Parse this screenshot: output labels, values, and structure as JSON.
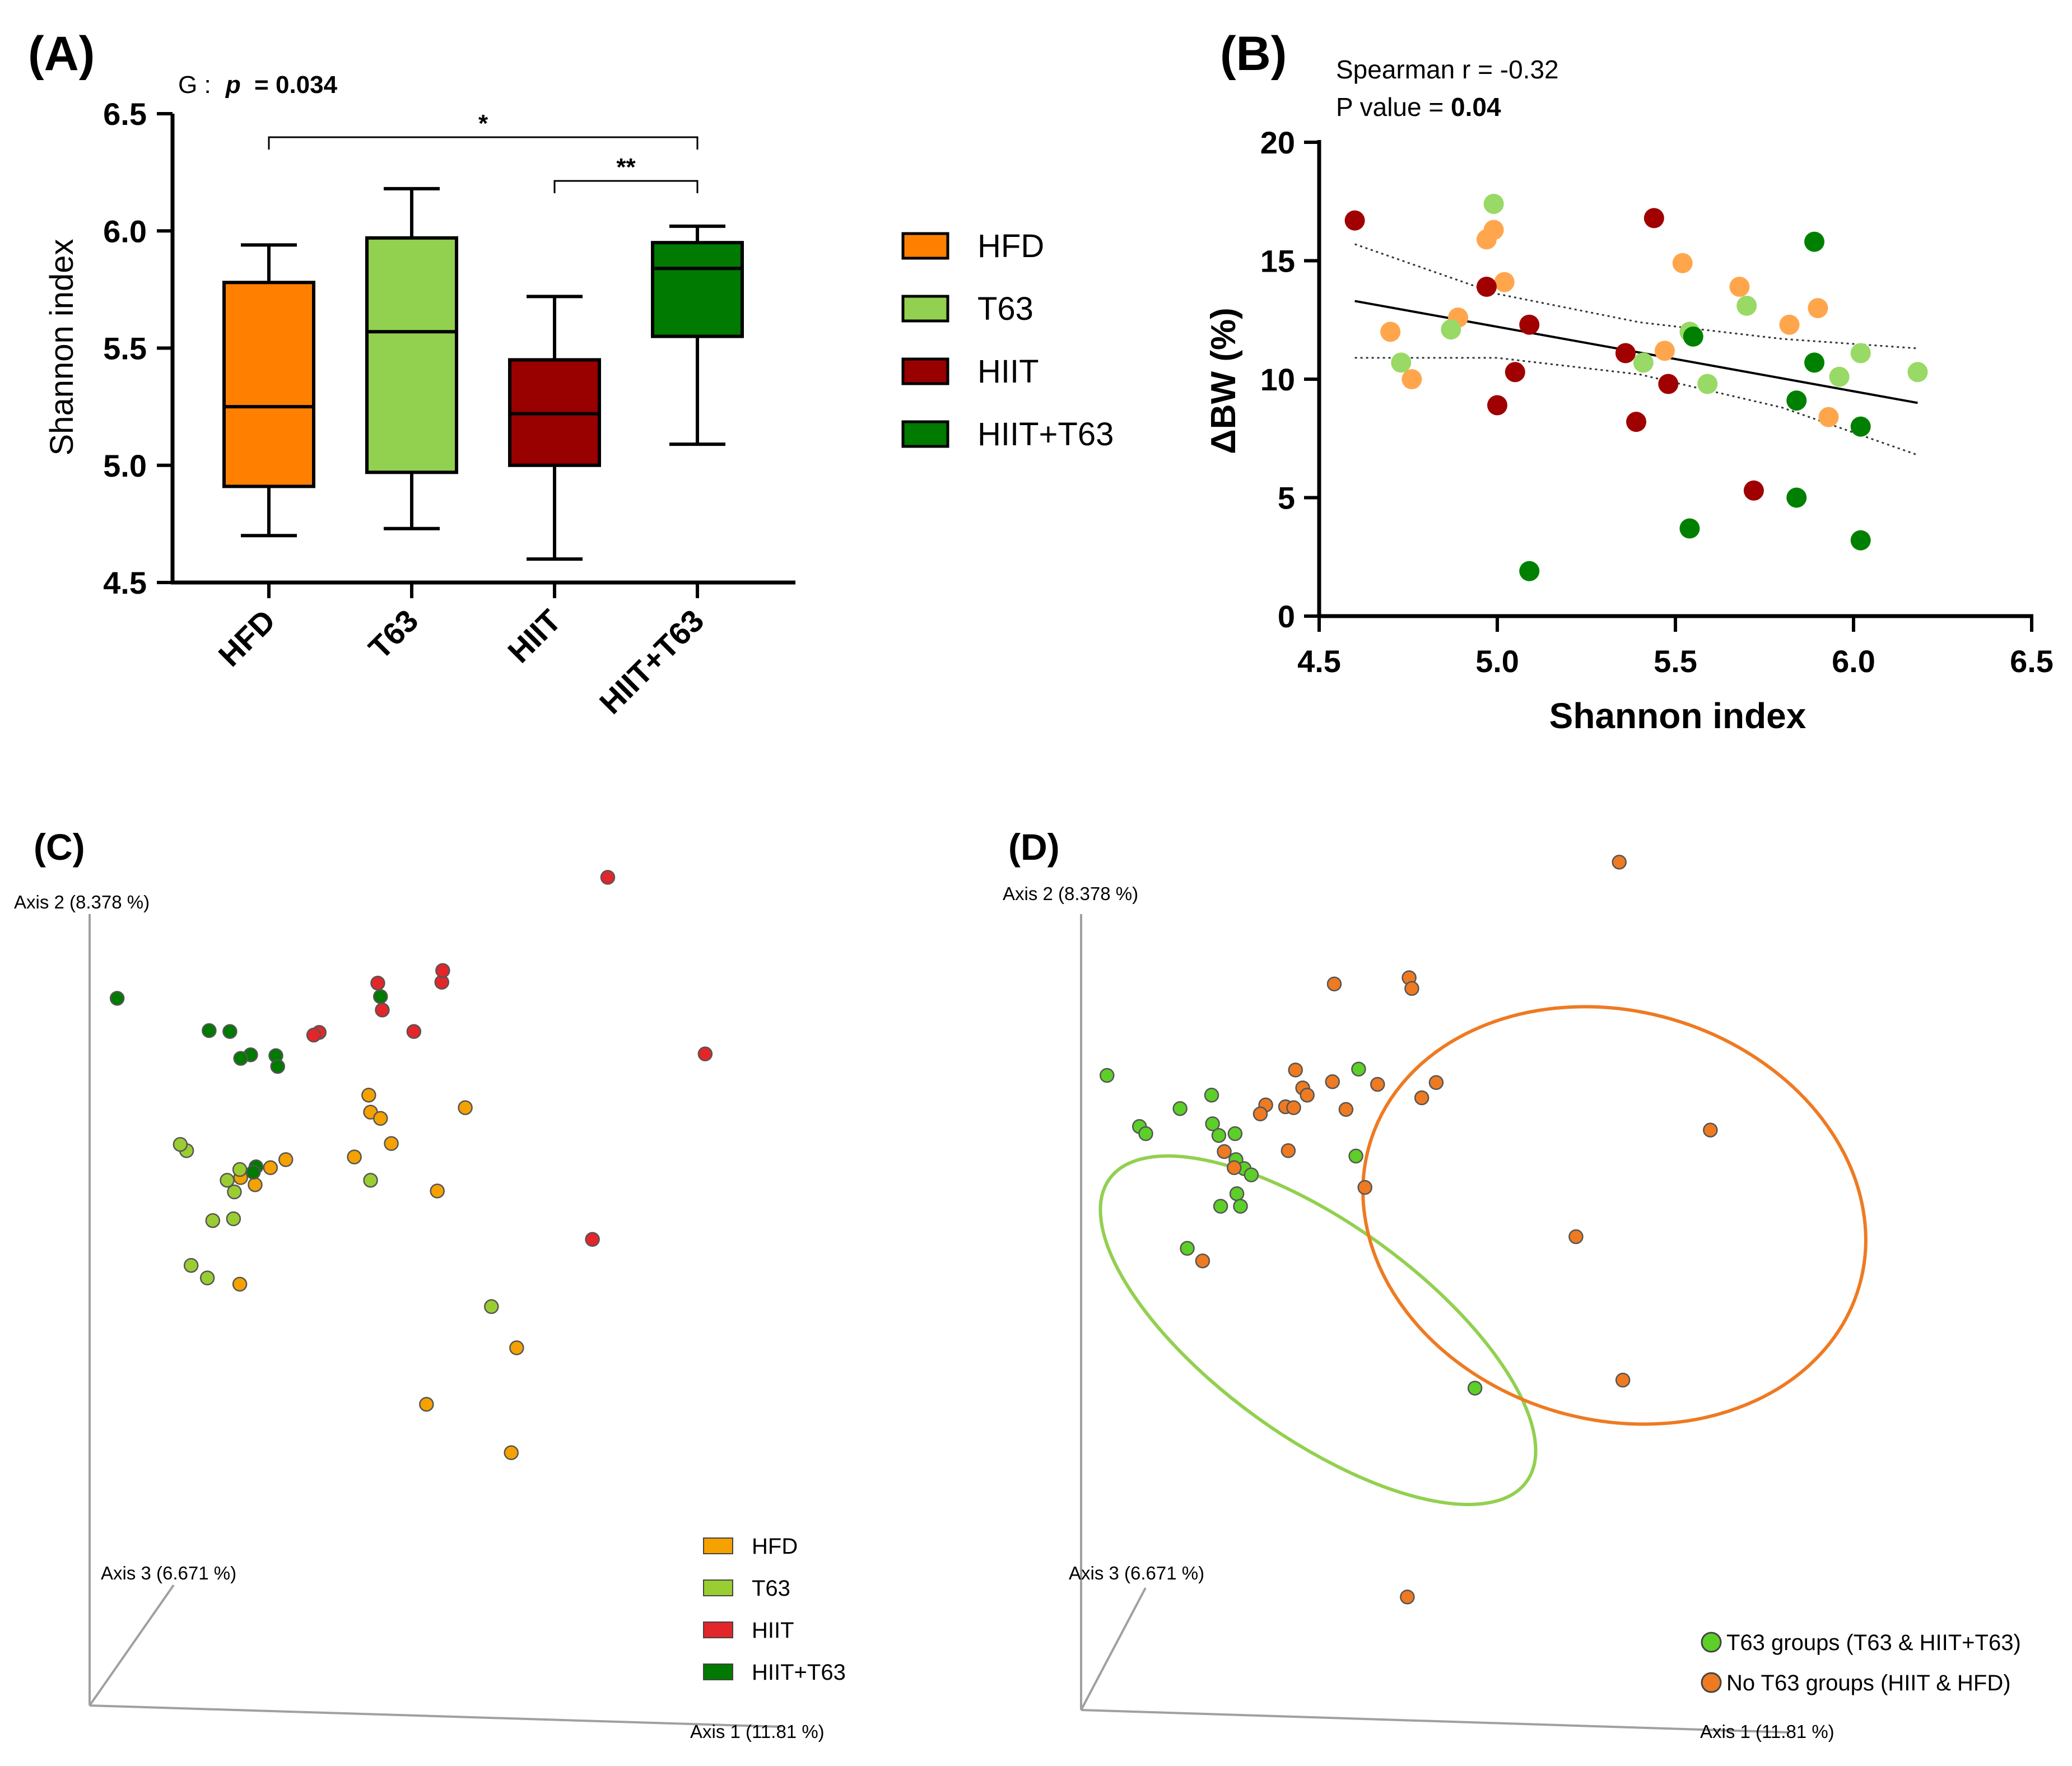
{
  "colors": {
    "HFD": "#ff8000",
    "T63": "#92d050",
    "HIIT": "#990000",
    "HIIT+T63": "#007a00",
    "scatter_HFD": "#ffa64d",
    "scatter_T63": "#99d966",
    "scatter_HIIT": "#a00000",
    "scatter_HIIT+T63": "#008000",
    "pcoa_HFD": "#f5a100",
    "pcoa_T63": "#9acd32",
    "pcoa_HIIT": "#e3262a",
    "pcoa_HIIT+T63": "#007a00",
    "pcoa_T63_groups": "#5ccf28",
    "pcoa_noT63_groups": "#ee7a22",
    "axis_grey": "#a0a0a0"
  },
  "chart_data": [
    {
      "panel": "(A)",
      "type": "box",
      "categories": [
        "HFD",
        "T63",
        "HIIT",
        "HIIT+T63"
      ],
      "stats": [
        {
          "min": 4.7,
          "q1": 4.91,
          "median": 5.25,
          "q3": 5.78,
          "max": 5.94
        },
        {
          "min": 4.73,
          "q1": 4.97,
          "median": 5.57,
          "q3": 5.97,
          "max": 6.18
        },
        {
          "min": 4.6,
          "q1": 5.0,
          "median": 5.22,
          "q3": 5.45,
          "max": 5.72
        },
        {
          "min": 5.09,
          "q1": 5.55,
          "median": 5.84,
          "q3": 5.95,
          "max": 6.02
        }
      ],
      "ylabel": "Shannon index",
      "ylim": [
        4.5,
        6.5
      ],
      "yticks": [
        "4.5",
        "5.0",
        "5.5",
        "6.0",
        "6.5"
      ],
      "annotation_prefix": "G :",
      "annotation_p_label": "p",
      "annotation_p_value": "= 0.034",
      "brackets": [
        {
          "from": "HFD",
          "to": "HIIT+T63",
          "label": "*"
        },
        {
          "from": "HIIT",
          "to": "HIIT+T63",
          "label": "**"
        }
      ],
      "legend": [
        "HFD",
        "T63",
        "HIIT",
        "HIIT+T63"
      ]
    },
    {
      "panel": "(B)",
      "type": "scatter",
      "xlabel": "Shannon index",
      "ylabel": "ΔBW (%)",
      "xlim": [
        4.5,
        6.5
      ],
      "ylim": [
        0,
        20
      ],
      "xticks": [
        "4.5",
        "5.0",
        "5.5",
        "6.0",
        "6.5"
      ],
      "yticks": [
        "0",
        "5",
        "10",
        "15",
        "20"
      ],
      "annotation_line1": "Spearman r = -0.32",
      "annotation_line2_prefix": "P value = ",
      "annotation_line2_value": "0.04",
      "regression": {
        "x": [
          4.6,
          6.18
        ],
        "y": [
          13.3,
          9.0
        ]
      },
      "ci_upper": {
        "x": [
          4.6,
          5.0,
          5.4,
          5.8,
          6.18
        ],
        "y": [
          15.7,
          13.6,
          12.4,
          11.7,
          11.3
        ]
      },
      "ci_lower": {
        "x": [
          4.6,
          5.0,
          5.4,
          5.8,
          6.18
        ],
        "y": [
          10.9,
          10.9,
          10.2,
          8.8,
          6.8
        ]
      },
      "series": [
        {
          "name": "HFD",
          "points": [
            [
              4.7,
              12.0
            ],
            [
              4.76,
              10.0
            ],
            [
              4.89,
              12.6
            ],
            [
              4.97,
              15.9
            ],
            [
              4.99,
              16.3
            ],
            [
              5.02,
              14.1
            ],
            [
              5.47,
              11.2
            ],
            [
              5.52,
              14.9
            ],
            [
              5.68,
              13.9
            ],
            [
              5.82,
              12.3
            ],
            [
              5.9,
              13.0
            ],
            [
              5.93,
              8.4
            ]
          ]
        },
        {
          "name": "T63",
          "points": [
            [
              4.73,
              10.7
            ],
            [
              4.87,
              12.1
            ],
            [
              4.99,
              17.4
            ],
            [
              5.41,
              10.7
            ],
            [
              5.54,
              12.0
            ],
            [
              5.59,
              9.8
            ],
            [
              5.7,
              13.1
            ],
            [
              5.96,
              10.1
            ],
            [
              6.02,
              11.1
            ],
            [
              6.18,
              10.3
            ]
          ]
        },
        {
          "name": "HIIT",
          "points": [
            [
              4.6,
              16.7
            ],
            [
              4.97,
              13.9
            ],
            [
              5.0,
              8.9
            ],
            [
              5.05,
              10.3
            ],
            [
              5.09,
              12.3
            ],
            [
              5.36,
              11.1
            ],
            [
              5.39,
              8.2
            ],
            [
              5.44,
              16.8
            ],
            [
              5.48,
              9.8
            ],
            [
              5.72,
              5.3
            ]
          ]
        },
        {
          "name": "HIIT+T63",
          "points": [
            [
              5.09,
              1.9
            ],
            [
              5.54,
              3.7
            ],
            [
              5.55,
              11.8
            ],
            [
              5.84,
              9.1
            ],
            [
              5.84,
              5.0
            ],
            [
              5.89,
              15.8
            ],
            [
              5.89,
              10.7
            ],
            [
              6.02,
              8.0
            ],
            [
              6.02,
              3.2
            ]
          ]
        }
      ]
    },
    {
      "panel": "(C)",
      "type": "scatter",
      "axis1_label": "Axis 1 (11.81 %)",
      "axis2_label": "Axis 2 (8.378 %)",
      "axis3_label": "Axis 3 (6.671 %)",
      "xlim": [
        0,
        100
      ],
      "ylim": [
        0,
        100
      ],
      "legend": [
        "HFD",
        "T63",
        "HIIT",
        "HIIT+T63"
      ],
      "series": [
        {
          "name": "HFD",
          "points": [
            [
              35.3,
              72.3
            ],
            [
              35.5,
              70.4
            ],
            [
              36.6,
              69.7
            ],
            [
              33.7,
              65.4
            ],
            [
              26.1,
              65.1
            ],
            [
              24.4,
              64.2
            ],
            [
              22.7,
              62.3
            ],
            [
              21.1,
              63.1
            ],
            [
              46.0,
              70.9
            ],
            [
              37.8,
              66.9
            ],
            [
              42.9,
              61.6
            ],
            [
              21.0,
              51.2
            ],
            [
              51.7,
              44.1
            ],
            [
              51.1,
              32.4
            ],
            [
              41.7,
              37.8
            ]
          ]
        },
        {
          "name": "T63",
          "points": [
            [
              15.1,
              66.1
            ],
            [
              14.4,
              66.8
            ],
            [
              21.0,
              64.0
            ],
            [
              20.4,
              61.5
            ],
            [
              20.3,
              58.5
            ],
            [
              18.0,
              58.3
            ],
            [
              19.6,
              62.8
            ],
            [
              15.6,
              53.3
            ],
            [
              17.4,
              51.9
            ],
            [
              35.5,
              62.8
            ],
            [
              48.9,
              48.7
            ]
          ]
        },
        {
          "name": "HIIT",
          "points": [
            [
              61.8,
              96.6
            ],
            [
              43.4,
              84.9
            ],
            [
              43.5,
              86.2
            ],
            [
              36.3,
              84.8
            ],
            [
              36.8,
              81.8
            ],
            [
              40.3,
              79.4
            ],
            [
              29.8,
              79.3
            ],
            [
              29.2,
              79.0
            ],
            [
              72.6,
              76.9
            ],
            [
              60.1,
              56.2
            ]
          ]
        },
        {
          "name": "HIIT+T63",
          "points": [
            [
              7.4,
              83.1
            ],
            [
              17.6,
              79.5
            ],
            [
              19.9,
              79.4
            ],
            [
              36.6,
              83.3
            ],
            [
              22.2,
              76.8
            ],
            [
              21.1,
              76.4
            ],
            [
              25.0,
              76.7
            ],
            [
              25.2,
              75.5
            ],
            [
              22.8,
              64.3
            ],
            [
              22.5,
              63.7
            ]
          ]
        }
      ]
    },
    {
      "panel": "(D)",
      "type": "scatter",
      "axis1_label": "Axis 1 (11.81 %)",
      "axis2_label": "Axis 2 (8.378 %)",
      "axis3_label": "Axis 3 (6.671 %)",
      "xlim": [
        0,
        100
      ],
      "ylim": [
        0,
        100
      ],
      "legend": [
        "T63 groups (T63 & HIIT+T63)",
        "No T63 groups (HIIT & HFD)"
      ],
      "series": [
        {
          "name": "T63 groups (T63 & HIIT+T63)",
          "points": [
            [
              6.6,
              74.5
            ],
            [
              18.2,
              72.3
            ],
            [
              18.3,
              69.1
            ],
            [
              14.7,
              70.8
            ],
            [
              19.0,
              67.8
            ],
            [
              20.8,
              68.0
            ],
            [
              10.2,
              68.8
            ],
            [
              10.9,
              68.0
            ],
            [
              20.9,
              65.1
            ],
            [
              21.8,
              64.1
            ],
            [
              22.6,
              63.4
            ],
            [
              21.0,
              61.3
            ],
            [
              19.2,
              59.9
            ],
            [
              21.4,
              59.9
            ],
            [
              15.5,
              55.2
            ],
            [
              34.5,
              75.2
            ],
            [
              34.2,
              65.5
            ],
            [
              47.4,
              39.6
            ]
          ]
        },
        {
          "name": "No T63 groups (HIIT & HFD)",
          "points": [
            [
              63.4,
              98.3
            ],
            [
              40.1,
              85.4
            ],
            [
              40.4,
              84.2
            ],
            [
              31.8,
              84.7
            ],
            [
              27.5,
              75.1
            ],
            [
              28.3,
              73.1
            ],
            [
              28.8,
              72.3
            ],
            [
              26.4,
              71.0
            ],
            [
              27.3,
              70.9
            ],
            [
              24.2,
              71.2
            ],
            [
              23.6,
              70.2
            ],
            [
              31.6,
              73.8
            ],
            [
              43.1,
              73.7
            ],
            [
              36.6,
              73.5
            ],
            [
              41.5,
              72.0
            ],
            [
              33.1,
              70.7
            ],
            [
              26.7,
              66.1
            ],
            [
              19.6,
              66.0
            ],
            [
              20.7,
              64.2
            ],
            [
              35.2,
              62.0
            ],
            [
              58.6,
              56.5
            ],
            [
              17.2,
              53.8
            ],
            [
              73.5,
              68.4
            ],
            [
              63.8,
              40.5
            ],
            [
              39.9,
              16.3
            ]
          ]
        }
      ]
    }
  ]
}
